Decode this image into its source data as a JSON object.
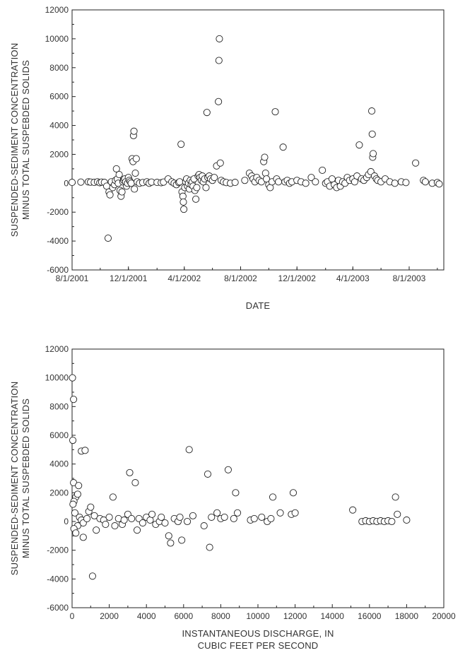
{
  "chart_data": [
    {
      "type": "scatter",
      "xlabel": "DATE",
      "ylabel_lines": [
        "SUSPENDED-SEDIMENT CONCENTRATION",
        "MINUS TOTAL SUSPEBDED SOLIDS"
      ],
      "x_ticks": [
        "8/1/2001",
        "12/1/2001",
        "4/1/2002",
        "8/1/2002",
        "12/1/2002",
        "4/1/2003",
        "8/1/2003"
      ],
      "ylim": [
        -6000,
        12000
      ],
      "y_ticks": [
        "-6000",
        "-4000",
        "-2000",
        "0",
        "2000",
        "4000",
        "6000",
        "8000",
        "10000",
        "12000"
      ],
      "xlim": [
        "2001-08-01",
        "2003-10-15"
      ],
      "points": [
        [
          "2001-08-01",
          60
        ],
        [
          "2001-08-20",
          80
        ],
        [
          "2001-09-05",
          100
        ],
        [
          "2001-09-10",
          80
        ],
        [
          "2001-09-18",
          60
        ],
        [
          "2001-09-25",
          100
        ],
        [
          "2001-09-30",
          40
        ],
        [
          "2001-10-04",
          80
        ],
        [
          "2001-10-10",
          60
        ],
        [
          "2001-10-15",
          -200
        ],
        [
          "2001-10-18",
          -3800
        ],
        [
          "2001-10-20",
          -600
        ],
        [
          "2001-10-22",
          -800
        ],
        [
          "2001-10-25",
          100
        ],
        [
          "2001-10-28",
          -300
        ],
        [
          "2001-11-01",
          -100
        ],
        [
          "2001-11-03",
          200
        ],
        [
          "2001-11-05",
          1000
        ],
        [
          "2001-11-07",
          300
        ],
        [
          "2001-11-09",
          0
        ],
        [
          "2001-11-11",
          600
        ],
        [
          "2001-11-13",
          -500
        ],
        [
          "2001-11-15",
          -900
        ],
        [
          "2001-11-17",
          -600
        ],
        [
          "2001-11-19",
          100
        ],
        [
          "2001-11-21",
          200
        ],
        [
          "2001-11-23",
          300
        ],
        [
          "2001-11-25",
          100
        ],
        [
          "2001-11-27",
          -200
        ],
        [
          "2001-11-29",
          0
        ],
        [
          "2001-12-01",
          400
        ],
        [
          "2001-12-03",
          200
        ],
        [
          "2001-12-05",
          100
        ],
        [
          "2001-12-07",
          0
        ],
        [
          "2001-12-09",
          1700
        ],
        [
          "2001-12-11",
          1500
        ],
        [
          "2001-12-12",
          3300
        ],
        [
          "2001-12-13",
          3600
        ],
        [
          "2001-12-14",
          -400
        ],
        [
          "2001-12-16",
          700
        ],
        [
          "2001-12-18",
          1700
        ],
        [
          "2001-12-20",
          100
        ],
        [
          "2001-12-25",
          0
        ],
        [
          "2002-01-01",
          50
        ],
        [
          "2002-01-10",
          100
        ],
        [
          "2002-01-15",
          0
        ],
        [
          "2002-01-20",
          80
        ],
        [
          "2002-02-01",
          60
        ],
        [
          "2002-02-10",
          40
        ],
        [
          "2002-02-15",
          80
        ],
        [
          "2002-02-25",
          300
        ],
        [
          "2002-03-05",
          100
        ],
        [
          "2002-03-10",
          0
        ],
        [
          "2002-03-15",
          -100
        ],
        [
          "2002-03-20",
          50
        ],
        [
          "2002-03-22",
          100
        ],
        [
          "2002-03-25",
          2700
        ],
        [
          "2002-03-27",
          -600
        ],
        [
          "2002-03-29",
          -900
        ],
        [
          "2002-03-30",
          -1300
        ],
        [
          "2002-03-31",
          -1800
        ],
        [
          "2002-04-02",
          -300
        ],
        [
          "2002-04-04",
          100
        ],
        [
          "2002-04-06",
          300
        ],
        [
          "2002-04-08",
          -200
        ],
        [
          "2002-04-10",
          0
        ],
        [
          "2002-04-12",
          -400
        ],
        [
          "2002-04-14",
          200
        ],
        [
          "2002-04-16",
          -100
        ],
        [
          "2002-04-18",
          100
        ],
        [
          "2002-04-20",
          -200
        ],
        [
          "2002-04-22",
          300
        ],
        [
          "2002-04-24",
          -500
        ],
        [
          "2002-04-26",
          -1100
        ],
        [
          "2002-04-28",
          -300
        ],
        [
          "2002-05-01",
          500
        ],
        [
          "2002-05-03",
          600
        ],
        [
          "2002-05-05",
          400
        ],
        [
          "2002-05-08",
          200
        ],
        [
          "2002-05-10",
          500
        ],
        [
          "2002-05-12",
          100
        ],
        [
          "2002-05-15",
          300
        ],
        [
          "2002-05-18",
          -300
        ],
        [
          "2002-05-20",
          4900
        ],
        [
          "2002-05-22",
          400
        ],
        [
          "2002-05-25",
          500
        ],
        [
          "2002-05-28",
          300
        ],
        [
          "2002-06-01",
          200
        ],
        [
          "2002-06-05",
          400
        ],
        [
          "2002-06-10",
          1200
        ],
        [
          "2002-06-14",
          5650
        ],
        [
          "2002-06-15",
          8500
        ],
        [
          "2002-06-16",
          10000
        ],
        [
          "2002-06-18",
          1400
        ],
        [
          "2002-06-20",
          200
        ],
        [
          "2002-06-25",
          100
        ],
        [
          "2002-07-01",
          50
        ],
        [
          "2002-07-10",
          0
        ],
        [
          "2002-07-20",
          60
        ],
        [
          "2002-08-10",
          200
        ],
        [
          "2002-08-20",
          700
        ],
        [
          "2002-08-25",
          500
        ],
        [
          "2002-08-28",
          300
        ],
        [
          "2002-09-01",
          100
        ],
        [
          "2002-09-05",
          400
        ],
        [
          "2002-09-10",
          200
        ],
        [
          "2002-09-15",
          100
        ],
        [
          "2002-09-20",
          1500
        ],
        [
          "2002-09-22",
          1800
        ],
        [
          "2002-09-24",
          700
        ],
        [
          "2002-09-26",
          300
        ],
        [
          "2002-10-01",
          -100
        ],
        [
          "2002-10-04",
          -300
        ],
        [
          "2002-10-08",
          100
        ],
        [
          "2002-10-15",
          4950
        ],
        [
          "2002-10-18",
          300
        ],
        [
          "2002-10-22",
          100
        ],
        [
          "2002-11-01",
          2500
        ],
        [
          "2002-11-05",
          100
        ],
        [
          "2002-11-10",
          200
        ],
        [
          "2002-11-15",
          0
        ],
        [
          "2002-11-20",
          100
        ],
        [
          "2002-12-01",
          200
        ],
        [
          "2002-12-10",
          100
        ],
        [
          "2002-12-20",
          0
        ],
        [
          "2003-01-01",
          400
        ],
        [
          "2003-01-10",
          100
        ],
        [
          "2003-01-25",
          900
        ],
        [
          "2003-02-01",
          0
        ],
        [
          "2003-02-05",
          100
        ],
        [
          "2003-02-10",
          -200
        ],
        [
          "2003-02-15",
          300
        ],
        [
          "2003-02-20",
          -100
        ],
        [
          "2003-02-25",
          -300
        ],
        [
          "2003-03-01",
          200
        ],
        [
          "2003-03-05",
          -200
        ],
        [
          "2003-03-10",
          100
        ],
        [
          "2003-03-15",
          0
        ],
        [
          "2003-03-20",
          400
        ],
        [
          "2003-03-25",
          200
        ],
        [
          "2003-04-01",
          300
        ],
        [
          "2003-04-05",
          100
        ],
        [
          "2003-04-10",
          500
        ],
        [
          "2003-04-15",
          2650
        ],
        [
          "2003-04-20",
          300
        ],
        [
          "2003-04-25",
          200
        ],
        [
          "2003-05-01",
          400
        ],
        [
          "2003-05-05",
          600
        ],
        [
          "2003-05-10",
          800
        ],
        [
          "2003-05-12",
          5000
        ],
        [
          "2003-05-13",
          3400
        ],
        [
          "2003-05-14",
          1800
        ],
        [
          "2003-05-15",
          2050
        ],
        [
          "2003-05-18",
          500
        ],
        [
          "2003-05-22",
          300
        ],
        [
          "2003-05-25",
          200
        ],
        [
          "2003-06-01",
          100
        ],
        [
          "2003-06-10",
          300
        ],
        [
          "2003-06-20",
          100
        ],
        [
          "2003-07-01",
          0
        ],
        [
          "2003-07-15",
          100
        ],
        [
          "2003-07-25",
          50
        ],
        [
          "2003-08-15",
          1400
        ],
        [
          "2003-09-01",
          200
        ],
        [
          "2003-09-05",
          100
        ],
        [
          "2003-09-20",
          0
        ],
        [
          "2003-10-01",
          50
        ],
        [
          "2003-10-05",
          -50
        ]
      ]
    },
    {
      "type": "scatter",
      "xlabel_lines": [
        "INSTANTANEOUS DISCHARGE, IN",
        "CUBIC FEET PER SECOND"
      ],
      "ylabel_lines": [
        "SUSPENDED-SEDIMENT CONCENTRATION",
        "MINUS TOTAL SUSPEBDED SOLIDS"
      ],
      "xlim": [
        0,
        20000
      ],
      "x_ticks": [
        "0",
        "2000",
        "4000",
        "6000",
        "8000",
        "10000",
        "12000",
        "14000",
        "16000",
        "18000",
        "20000"
      ],
      "ylim": [
        -6000,
        12000
      ],
      "y_ticks": [
        "-6000",
        "-4000",
        "-2000",
        "0",
        "2000",
        "4000",
        "6000",
        "8000",
        "10000",
        "12000"
      ],
      "points": [
        [
          20,
          10000
        ],
        [
          80,
          8500
        ],
        [
          40,
          5650
        ],
        [
          500,
          4900
        ],
        [
          700,
          4950
        ],
        [
          80,
          2700
        ],
        [
          350,
          2500
        ],
        [
          200,
          1700
        ],
        [
          100,
          1400
        ],
        [
          300,
          1900
        ],
        [
          50,
          1200
        ],
        [
          150,
          600
        ],
        [
          300,
          -300
        ],
        [
          100,
          -500
        ],
        [
          200,
          -800
        ],
        [
          600,
          -1100
        ],
        [
          1100,
          -3800
        ],
        [
          400,
          300
        ],
        [
          500,
          100
        ],
        [
          600,
          -100
        ],
        [
          800,
          200
        ],
        [
          900,
          700
        ],
        [
          1000,
          1000
        ],
        [
          1200,
          400
        ],
        [
          1300,
          -600
        ],
        [
          1500,
          200
        ],
        [
          1700,
          100
        ],
        [
          1800,
          -200
        ],
        [
          2000,
          300
        ],
        [
          2200,
          1700
        ],
        [
          2300,
          -300
        ],
        [
          2500,
          200
        ],
        [
          2700,
          -200
        ],
        [
          2800,
          100
        ],
        [
          3000,
          500
        ],
        [
          3100,
          3400
        ],
        [
          3200,
          200
        ],
        [
          3400,
          2700
        ],
        [
          3500,
          -600
        ],
        [
          3600,
          200
        ],
        [
          3800,
          -100
        ],
        [
          4000,
          300
        ],
        [
          4200,
          100
        ],
        [
          4300,
          500
        ],
        [
          4500,
          -200
        ],
        [
          4700,
          0
        ],
        [
          4800,
          300
        ],
        [
          5000,
          -100
        ],
        [
          5200,
          -1000
        ],
        [
          5300,
          -1500
        ],
        [
          5500,
          200
        ],
        [
          5700,
          0
        ],
        [
          5800,
          300
        ],
        [
          5900,
          -1300
        ],
        [
          6300,
          5000
        ],
        [
          6200,
          0
        ],
        [
          6500,
          400
        ],
        [
          7100,
          -300
        ],
        [
          7300,
          3300
        ],
        [
          7400,
          -1800
        ],
        [
          7500,
          300
        ],
        [
          7800,
          600
        ],
        [
          8000,
          200
        ],
        [
          8200,
          300
        ],
        [
          8400,
          3600
        ],
        [
          8700,
          200
        ],
        [
          8800,
          2000
        ],
        [
          8900,
          600
        ],
        [
          9600,
          100
        ],
        [
          9800,
          200
        ],
        [
          10200,
          300
        ],
        [
          10500,
          0
        ],
        [
          10700,
          200
        ],
        [
          10800,
          1700
        ],
        [
          11200,
          600
        ],
        [
          11800,
          500
        ],
        [
          11900,
          2000
        ],
        [
          12000,
          600
        ],
        [
          15100,
          800
        ],
        [
          15600,
          0
        ],
        [
          15800,
          50
        ],
        [
          16000,
          0
        ],
        [
          16200,
          50
        ],
        [
          16400,
          0
        ],
        [
          16600,
          50
        ],
        [
          16800,
          0
        ],
        [
          17000,
          50
        ],
        [
          17200,
          0
        ],
        [
          17400,
          1700
        ],
        [
          17500,
          500
        ],
        [
          18000,
          100
        ]
      ]
    }
  ]
}
